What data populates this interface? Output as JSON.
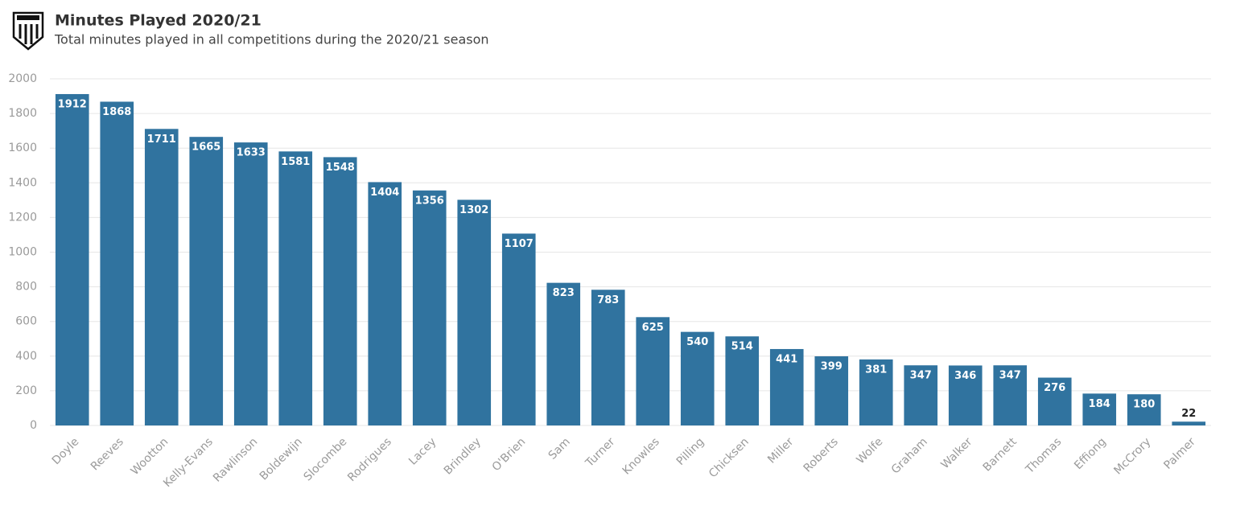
{
  "chart_data": {
    "type": "bar",
    "title": "Minutes Played 2020/21",
    "subtitle": "Total minutes played in all competitions during the 2020/21 season",
    "categories": [
      "Doyle",
      "Reeves",
      "Wootton",
      "Kelly-Evans",
      "Rawlinson",
      "Boldewijn",
      "Slocombe",
      "Rodrigues",
      "Lacey",
      "Brindley",
      "O'Brien",
      "Sam",
      "Turner",
      "Knowles",
      "Pilling",
      "Chicksen",
      "Miller",
      "Roberts",
      "Wolfe",
      "Graham",
      "Walker",
      "Barnett",
      "Thomas",
      "Effiong",
      "McCrory",
      "Palmer"
    ],
    "values": [
      1912,
      1868,
      1711,
      1665,
      1633,
      1581,
      1548,
      1404,
      1356,
      1302,
      1107,
      823,
      783,
      625,
      540,
      514,
      441,
      399,
      381,
      347,
      346,
      347,
      276,
      184,
      180,
      22
    ],
    "color": "#30739f",
    "ylim": [
      0,
      2000
    ],
    "yticks": [
      0,
      200,
      400,
      600,
      800,
      1000,
      1200,
      1400,
      1600,
      1800,
      2000
    ],
    "grid": true
  }
}
